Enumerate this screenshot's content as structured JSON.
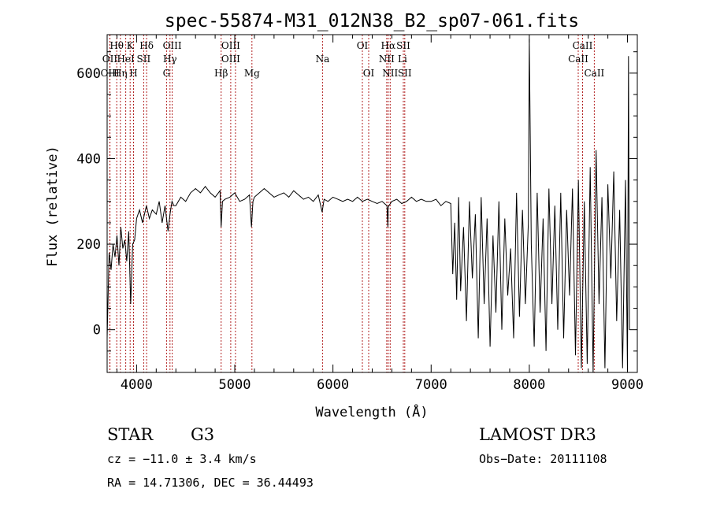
{
  "chart_data": {
    "type": "line",
    "title": "spec-55874-M31_012N38_B2_sp07-061.fits",
    "xlabel": "Wavelength (Å)",
    "ylabel": "Flux (relative)",
    "xlim": [
      3700,
      9100
    ],
    "ylim": [
      -100,
      690
    ],
    "xticks": [
      4000,
      5000,
      6000,
      7000,
      8000,
      9000
    ],
    "yticks": [
      0,
      200,
      400,
      600
    ],
    "grid": false,
    "series": [
      {
        "x": [
          3700,
          3720,
          3740,
          3760,
          3780,
          3800,
          3820,
          3840,
          3860,
          3880,
          3900,
          3920,
          3940,
          3960,
          3980,
          4000,
          4030,
          4060,
          4100,
          4130,
          4160,
          4200,
          4230,
          4260,
          4290,
          4320,
          4340,
          4360,
          4380,
          4400,
          4450,
          4500,
          4550,
          4600,
          4650,
          4700,
          4750,
          4800,
          4850,
          4861,
          4875,
          4900,
          4950,
          5000,
          5050,
          5100,
          5150,
          5170,
          5185,
          5200,
          5250,
          5300,
          5350,
          5400,
          5450,
          5500,
          5550,
          5600,
          5650,
          5700,
          5750,
          5800,
          5850,
          5890,
          5910,
          5950,
          6000,
          6050,
          6100,
          6150,
          6200,
          6250,
          6300,
          6350,
          6400,
          6450,
          6500,
          6550,
          6560,
          6563,
          6570,
          6600,
          6650,
          6700,
          6750,
          6800,
          6850,
          6900,
          6950,
          7000,
          7050,
          7100,
          7150,
          7200,
          7220,
          7240,
          7260,
          7280,
          7300,
          7330,
          7360,
          7390,
          7420,
          7450,
          7480,
          7510,
          7540,
          7570,
          7600,
          7630,
          7660,
          7690,
          7720,
          7750,
          7780,
          7810,
          7840,
          7870,
          7900,
          7930,
          7960,
          7990,
          8000,
          8020,
          8050,
          8080,
          8110,
          8140,
          8170,
          8200,
          8230,
          8260,
          8290,
          8320,
          8350,
          8380,
          8410,
          8440,
          8470,
          8500,
          8530,
          8560,
          8590,
          8620,
          8650,
          8680,
          8710,
          8740,
          8770,
          8800,
          8830,
          8860,
          8890,
          8920,
          8950,
          8980,
          9000,
          9010,
          9020
        ],
        "y": [
          -20,
          180,
          140,
          200,
          170,
          220,
          150,
          240,
          190,
          210,
          160,
          230,
          60,
          200,
          210,
          260,
          280,
          250,
          290,
          260,
          280,
          270,
          300,
          250,
          290,
          230,
          270,
          300,
          290,
          290,
          310,
          300,
          320,
          330,
          320,
          335,
          320,
          310,
          325,
          240,
          300,
          305,
          310,
          320,
          300,
          305,
          315,
          240,
          300,
          310,
          320,
          330,
          320,
          310,
          315,
          320,
          310,
          325,
          315,
          305,
          310,
          300,
          315,
          275,
          305,
          300,
          310,
          305,
          300,
          305,
          300,
          310,
          300,
          305,
          300,
          295,
          300,
          290,
          240,
          285,
          290,
          300,
          305,
          295,
          300,
          310,
          300,
          305,
          300,
          300,
          305,
          290,
          300,
          295,
          130,
          250,
          70,
          310,
          90,
          240,
          20,
          300,
          120,
          270,
          -20,
          310,
          60,
          260,
          -40,
          220,
          40,
          300,
          0,
          260,
          80,
          190,
          -20,
          320,
          30,
          280,
          60,
          250,
          680,
          200,
          -40,
          320,
          40,
          260,
          -50,
          330,
          60,
          290,
          0,
          320,
          -20,
          280,
          80,
          330,
          -60,
          350,
          -90,
          300,
          -80,
          380,
          -100,
          420,
          60,
          310,
          -90,
          340,
          120,
          370,
          20,
          280,
          -90,
          350,
          -100,
          640,
          0
        ]
      }
    ],
    "line_labels": [
      {
        "label": "Hθ",
        "x": 3798,
        "row": 1
      },
      {
        "label": "OII",
        "x": 3727,
        "row": 2
      },
      {
        "label": "OIII",
        "x": 3729,
        "row": 3
      },
      {
        "label": "K",
        "x": 3934,
        "row": 1
      },
      {
        "label": "HeI",
        "x": 3889,
        "row": 2
      },
      {
        "label": "Hη",
        "x": 3835,
        "row": 3
      },
      {
        "label": "Hδ",
        "x": 4102,
        "row": 1
      },
      {
        "label": "SII",
        "x": 4072,
        "row": 2
      },
      {
        "label": "H",
        "x": 3969,
        "row": 3
      },
      {
        "label": "OIII",
        "x": 4363,
        "row": 1
      },
      {
        "label": "Hγ",
        "x": 4340,
        "row": 2
      },
      {
        "label": "G",
        "x": 4305,
        "row": 3
      },
      {
        "label": "OIII",
        "x": 4959,
        "row": 1
      },
      {
        "label": "OIII",
        "x": 4959,
        "row": 2
      },
      {
        "label": "Hβ",
        "x": 4861,
        "row": 3
      },
      {
        "label": "Mg",
        "x": 5175,
        "row": 3
      },
      {
        "label": "Na",
        "x": 5894,
        "row": 2
      },
      {
        "label": "OI",
        "x": 6300,
        "row": 1
      },
      {
        "label": "OI",
        "x": 6364,
        "row": 3
      },
      {
        "label": "Hα",
        "x": 6563,
        "row": 1
      },
      {
        "label": "SII",
        "x": 6717,
        "row": 1
      },
      {
        "label": "NII",
        "x": 6548,
        "row": 2
      },
      {
        "label": "Li",
        "x": 6708,
        "row": 2
      },
      {
        "label": "NII",
        "x": 6583,
        "row": 3
      },
      {
        "label": "SII",
        "x": 6731,
        "row": 3
      },
      {
        "label": "CaII",
        "x": 8542,
        "row": 1
      },
      {
        "label": "CaII",
        "x": 8498,
        "row": 2
      },
      {
        "label": "CaII",
        "x": 8662,
        "row": 3
      }
    ],
    "marker_lines": [
      3727,
      3729,
      3798,
      3835,
      3889,
      3934,
      3969,
      4072,
      4102,
      4305,
      4340,
      4363,
      4861,
      4959,
      5007,
      5175,
      5894,
      6300,
      6364,
      6548,
      6563,
      6583,
      6717,
      6731,
      8498,
      8542,
      8662
    ],
    "marker_color": "#b22222"
  },
  "info": {
    "class": "STAR",
    "subclass": "G3",
    "survey": "LAMOST DR3",
    "cz": "cz = −11.0 ± 3.4 km/s",
    "obsdate": "Obs−Date: 20111108",
    "radec": "RA =  14.71306, DEC =  36.44493"
  }
}
